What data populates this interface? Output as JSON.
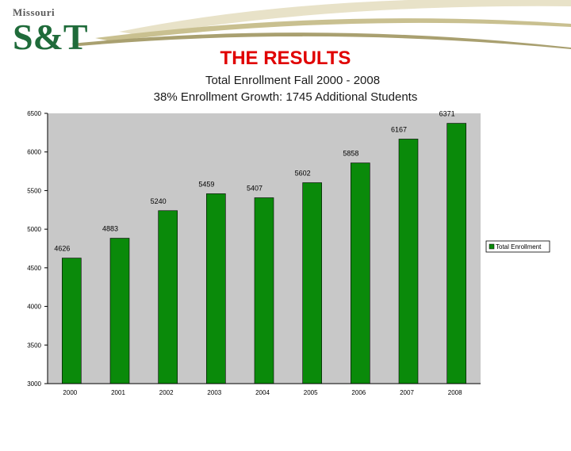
{
  "header": {
    "logo_top_text": "Missouri",
    "logo_main_text": "S&T"
  },
  "chart_data": {
    "type": "bar",
    "title": "THE RESULTS",
    "subtitle_lines": [
      "Total Enrollment Fall 2000 - 2008",
      "38% Enrollment Growth: 1745 Additional Students"
    ],
    "categories": [
      "2000",
      "2001",
      "2002",
      "2003",
      "2004",
      "2005",
      "2006",
      "2007",
      "2008"
    ],
    "series": [
      {
        "name": "Total Enrollment",
        "values": [
          4626,
          4883,
          5240,
          5459,
          5407,
          5602,
          5858,
          6167,
          6371
        ],
        "color": "#0a8a0a"
      }
    ],
    "data_labels": [
      "4626",
      "4883",
      "5240",
      "5459",
      "5407",
      "5602",
      "5858",
      "6167",
      "6371"
    ],
    "ylim": [
      3000,
      6500
    ],
    "yticks": [
      "3000",
      "3500",
      "4000",
      "4500",
      "5000",
      "5500",
      "6000",
      "6500"
    ],
    "xlabel": "",
    "ylabel": "",
    "grid": false,
    "legend_position": "right",
    "plot_background": "#c8c8c8"
  }
}
